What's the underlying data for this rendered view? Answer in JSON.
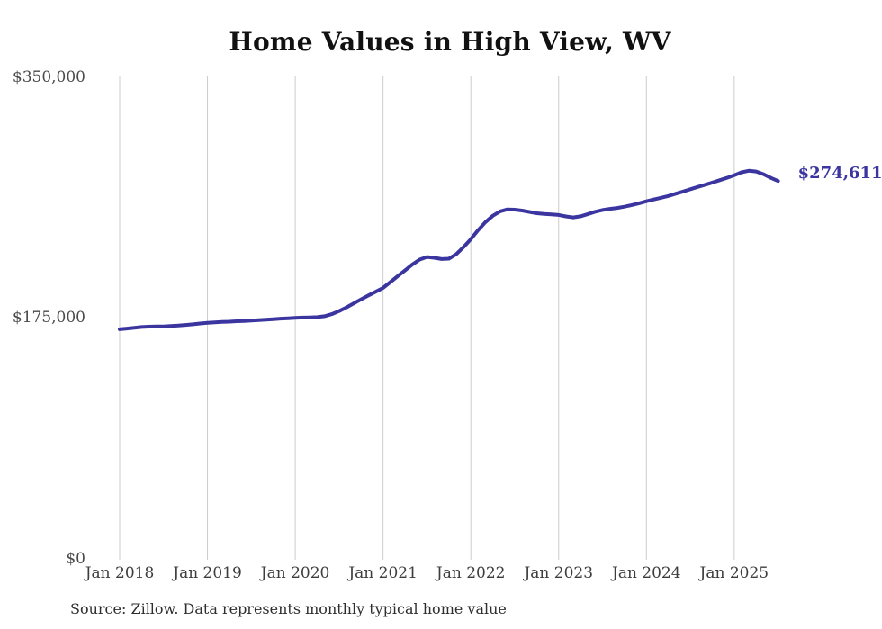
{
  "title": "Home Values in High View, WV",
  "source_note": "Source: Zillow. Data represents monthly typical home value",
  "end_label": "$274,611",
  "colors": {
    "line": "#3b35a0",
    "grid": "#cccccc",
    "background": "#ffffff",
    "title_text": "#111111",
    "axis_text": "#4a4a4a",
    "end_label_text": "#3b35a0"
  },
  "chart_data": {
    "type": "line",
    "title": "Home Values in High View, WV",
    "xlabel": "",
    "ylabel": "",
    "ylim": [
      0,
      350000
    ],
    "grid": "vertical-only",
    "legend": "none",
    "y_tick_labels": [
      "$0",
      "$175,000",
      "$350,000"
    ],
    "y_tick_values": [
      0,
      175000,
      350000
    ],
    "x_tick_labels": [
      "Jan 2018",
      "Jan 2019",
      "Jan 2020",
      "Jan 2021",
      "Jan 2022",
      "Jan 2023",
      "Jan 2024",
      "Jan 2025"
    ],
    "frequency": "monthly",
    "start_month": "2018-01",
    "end_month": "2025-07",
    "final_value": 274611,
    "series": [
      {
        "name": "Typical home value",
        "values": [
          166900,
          167400,
          168000,
          168500,
          168800,
          168900,
          169000,
          169300,
          169600,
          170000,
          170500,
          171100,
          171600,
          171900,
          172200,
          172400,
          172700,
          172900,
          173200,
          173500,
          173800,
          174200,
          174600,
          174900,
          175200,
          175400,
          175500,
          175700,
          176400,
          177900,
          180100,
          182800,
          185700,
          188700,
          191500,
          194200,
          196900,
          201200,
          205500,
          209600,
          214000,
          217500,
          219400,
          218800,
          217900,
          218200,
          221400,
          226600,
          232400,
          238900,
          244800,
          249400,
          252600,
          254000,
          253800,
          253200,
          252200,
          251200,
          250700,
          250400,
          250000,
          248900,
          248200,
          249000,
          250600,
          252300,
          253600,
          254400,
          255100,
          256000,
          257200,
          258500,
          259900,
          261200,
          262500,
          263800,
          265400,
          267000,
          268700,
          270300,
          271900,
          273500,
          275200,
          276900,
          278800,
          281000,
          282100,
          281600,
          279600,
          276900,
          274611
        ]
      }
    ]
  }
}
